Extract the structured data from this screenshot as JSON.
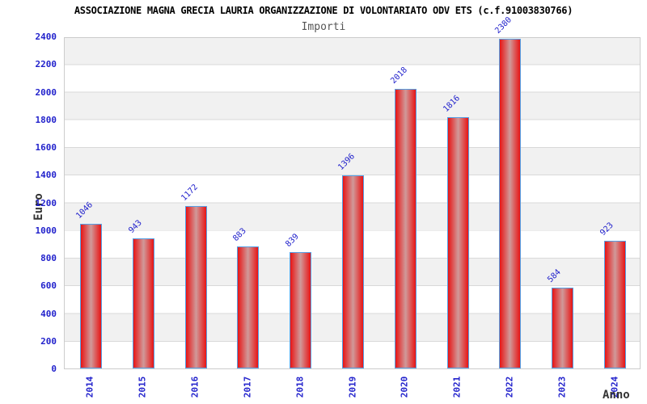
{
  "chart_data": {
    "type": "bar",
    "title": "ASSOCIAZIONE MAGNA GRECIA LAURIA ORGANIZZAZIONE DI VOLONTARIATO ODV ETS (c.f.91003830766)",
    "subtitle": "Importi",
    "xlabel": "Anno",
    "ylabel": "Euro",
    "categories": [
      "2014",
      "2015",
      "2016",
      "2017",
      "2018",
      "2019",
      "2020",
      "2021",
      "2022",
      "2023",
      "2024"
    ],
    "values": [
      1046,
      943,
      1172,
      883,
      839,
      1396,
      2018,
      1816,
      2380,
      584,
      923
    ],
    "ylim": [
      0,
      2400
    ],
    "ytick_step": 200,
    "grid": "horizontal-bands-alternating",
    "legend": "none",
    "colors": {
      "bar_edge": "#e81414",
      "bar_center": "#d09a9a",
      "bar_outline": "#55a0e5",
      "label_blue": "#2222cc",
      "band_gray": "#f1f1f1",
      "grid_line": "#d9d9d9",
      "plot_border": "#cccccc",
      "axis_title_text": "#333333",
      "subtitle_text": "#555555",
      "title_text": "#000000"
    }
  }
}
